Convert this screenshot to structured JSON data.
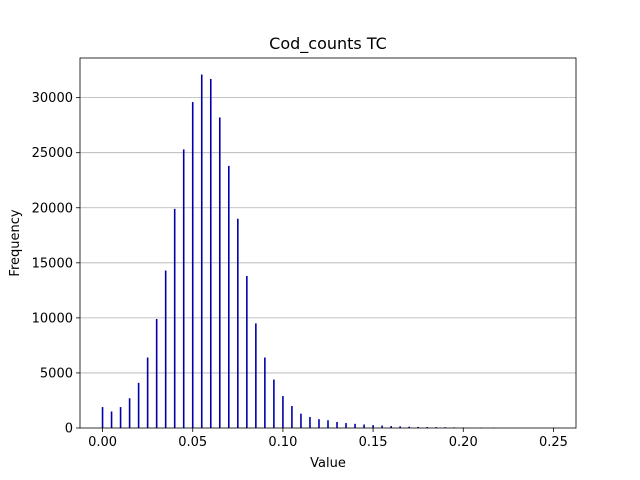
{
  "chart_data": {
    "type": "bar",
    "title": "Cod_counts TC",
    "xlabel": "Value",
    "ylabel": "Frequency",
    "xlim": [
      -0.0125,
      0.2625
    ],
    "ylim": [
      0,
      33600
    ],
    "grid": "y",
    "bar_color": "#0000aa",
    "xticks": [
      0.0,
      0.05,
      0.1,
      0.15,
      0.2,
      0.25
    ],
    "xtick_labels": [
      "0.00",
      "0.05",
      "0.10",
      "0.15",
      "0.20",
      "0.25"
    ],
    "yticks": [
      0,
      5000,
      10000,
      15000,
      20000,
      25000,
      30000
    ],
    "ytick_labels": [
      "0",
      "5000",
      "10000",
      "15000",
      "20000",
      "25000",
      "30000"
    ],
    "points": [
      {
        "x": 0.0,
        "y": 1900
      },
      {
        "x": 0.005,
        "y": 1500
      },
      {
        "x": 0.01,
        "y": 1900
      },
      {
        "x": 0.015,
        "y": 2700
      },
      {
        "x": 0.02,
        "y": 4100
      },
      {
        "x": 0.025,
        "y": 6400
      },
      {
        "x": 0.03,
        "y": 9900
      },
      {
        "x": 0.035,
        "y": 14300
      },
      {
        "x": 0.04,
        "y": 19900
      },
      {
        "x": 0.045,
        "y": 25300
      },
      {
        "x": 0.05,
        "y": 29600
      },
      {
        "x": 0.055,
        "y": 32100
      },
      {
        "x": 0.06,
        "y": 31700
      },
      {
        "x": 0.065,
        "y": 28200
      },
      {
        "x": 0.07,
        "y": 23800
      },
      {
        "x": 0.075,
        "y": 19000
      },
      {
        "x": 0.08,
        "y": 13800
      },
      {
        "x": 0.085,
        "y": 9500
      },
      {
        "x": 0.09,
        "y": 6400
      },
      {
        "x": 0.095,
        "y": 4400
      },
      {
        "x": 0.1,
        "y": 2900
      },
      {
        "x": 0.105,
        "y": 2000
      },
      {
        "x": 0.11,
        "y": 1300
      },
      {
        "x": 0.115,
        "y": 1000
      },
      {
        "x": 0.12,
        "y": 800
      },
      {
        "x": 0.125,
        "y": 700
      },
      {
        "x": 0.13,
        "y": 550
      },
      {
        "x": 0.135,
        "y": 450
      },
      {
        "x": 0.14,
        "y": 380
      },
      {
        "x": 0.145,
        "y": 320
      },
      {
        "x": 0.15,
        "y": 260
      },
      {
        "x": 0.155,
        "y": 220
      },
      {
        "x": 0.16,
        "y": 180
      },
      {
        "x": 0.165,
        "y": 150
      },
      {
        "x": 0.17,
        "y": 120
      },
      {
        "x": 0.175,
        "y": 100
      },
      {
        "x": 0.18,
        "y": 90
      },
      {
        "x": 0.185,
        "y": 80
      },
      {
        "x": 0.19,
        "y": 70
      },
      {
        "x": 0.195,
        "y": 60
      },
      {
        "x": 0.2,
        "y": 50
      },
      {
        "x": 0.21,
        "y": 40
      },
      {
        "x": 0.217,
        "y": 30
      },
      {
        "x": 0.25,
        "y": 20
      }
    ]
  }
}
